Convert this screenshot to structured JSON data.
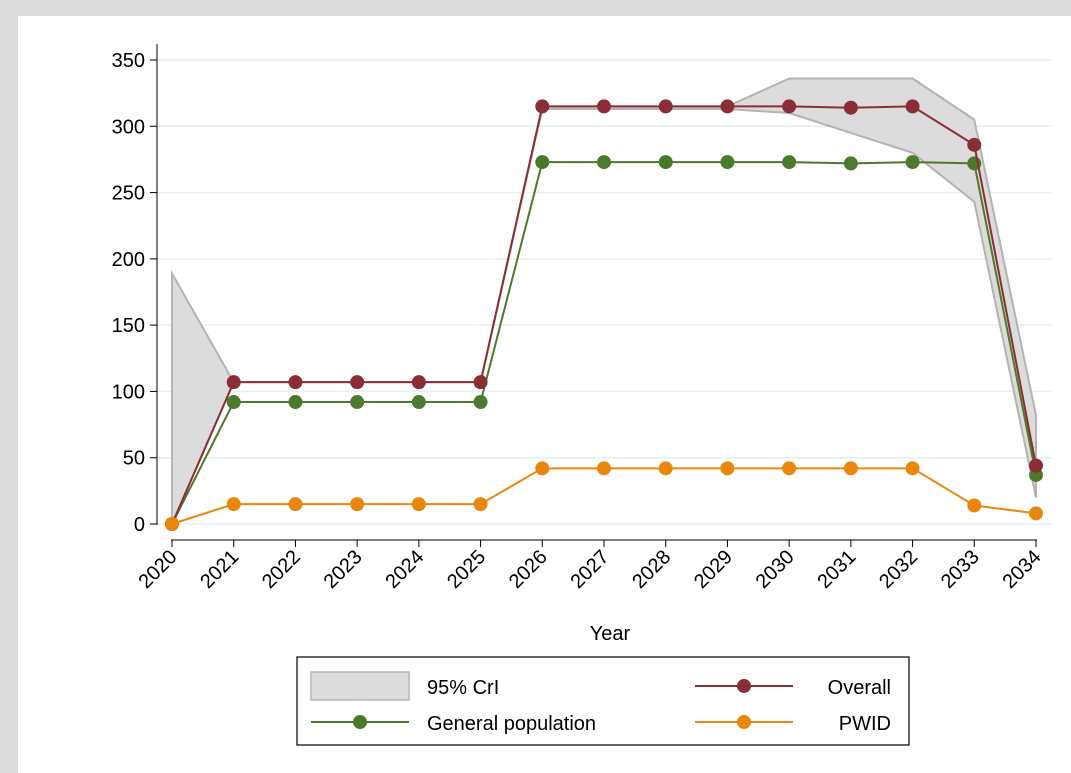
{
  "chart_data": {
    "type": "line",
    "x_label": "Year",
    "x": [
      2020,
      2021,
      2022,
      2023,
      2024,
      2025,
      2026,
      2027,
      2028,
      2029,
      2030,
      2031,
      2032,
      2033,
      2034
    ],
    "xlim": [
      2020,
      2034
    ],
    "xticks": [
      2020,
      2021,
      2022,
      2023,
      2024,
      2025,
      2026,
      2027,
      2028,
      2029,
      2030,
      2031,
      2032,
      2033,
      2034
    ],
    "ylim": [
      0,
      350
    ],
    "yticks": [
      0,
      50,
      100,
      150,
      200,
      250,
      300,
      350
    ],
    "grid": true,
    "band": {
      "name": "95% CrI",
      "color": "#dcdcdc",
      "upper": [
        189,
        107,
        107,
        107,
        107,
        107,
        315,
        315,
        315,
        315,
        336,
        336,
        336,
        305,
        82
      ],
      "lower": [
        0,
        107,
        107,
        107,
        107,
        107,
        313,
        313,
        313,
        313,
        310,
        295,
        280,
        243,
        20
      ]
    },
    "series": [
      {
        "name": "Overall",
        "color": "#8b2d35",
        "values": [
          0,
          107,
          107,
          107,
          107,
          107,
          315,
          315,
          315,
          315,
          315,
          314,
          315,
          286,
          44
        ]
      },
      {
        "name": "General population",
        "color": "#4c7a2c",
        "values": [
          0,
          92,
          92,
          92,
          92,
          92,
          273,
          273,
          273,
          273,
          273,
          272,
          273,
          272,
          37
        ]
      },
      {
        "name": "PWID",
        "color": "#e8870c",
        "values": [
          0,
          15,
          15,
          15,
          15,
          15,
          42,
          42,
          42,
          42,
          42,
          42,
          42,
          14,
          8
        ]
      }
    ]
  }
}
